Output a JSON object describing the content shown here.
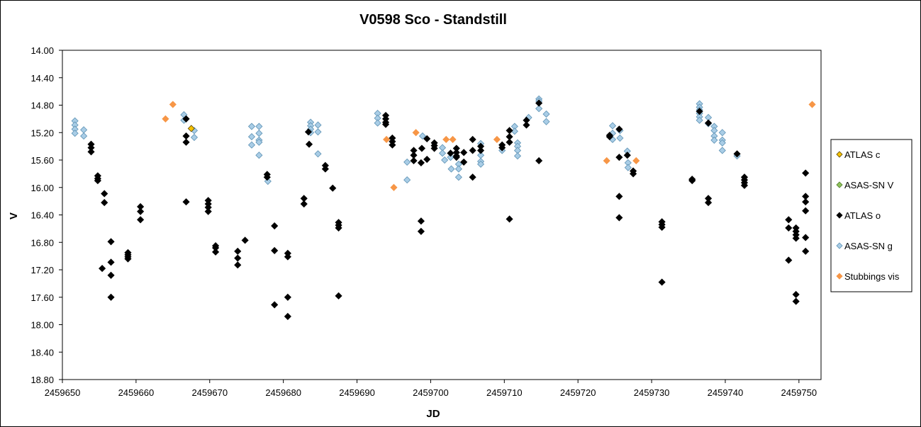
{
  "chart_data": {
    "type": "scatter",
    "title": "V0598 Sco - Standstill",
    "xlabel": "JD",
    "ylabel": "V",
    "xlim": [
      2459650,
      2459753
    ],
    "ylim": [
      14.0,
      18.8
    ],
    "y_inverted": true,
    "xticks": [
      2459650,
      2459660,
      2459670,
      2459680,
      2459690,
      2459700,
      2459710,
      2459720,
      2459730,
      2459740,
      2459750
    ],
    "yticks": [
      "14.00",
      "14.40",
      "14.80",
      "15.20",
      "15.60",
      "16.00",
      "16.40",
      "16.80",
      "17.20",
      "17.60",
      "18.00",
      "18.40",
      "18.80"
    ],
    "grid": false,
    "legend_position": "right",
    "series": [
      {
        "name": "ATLAS c",
        "fill": "#f5c100",
        "stroke": "#5a4500",
        "points": [
          [
            2459667.5,
            15.14
          ]
        ]
      },
      {
        "name": "ASAS-SN V",
        "fill": "#8fc25b",
        "stroke": "#4d7a2a",
        "points": []
      },
      {
        "name": "ATLAS o",
        "fill": "#000000",
        "stroke": "#000000",
        "points": [
          [
            2459653.9,
            15.37
          ],
          [
            2459653.9,
            15.42
          ],
          [
            2459653.9,
            15.48
          ],
          [
            2459654.8,
            15.83
          ],
          [
            2459654.8,
            15.87
          ],
          [
            2459654.8,
            15.9
          ],
          [
            2459655.7,
            16.09
          ],
          [
            2459655.7,
            16.22
          ],
          [
            2459655.4,
            17.18
          ],
          [
            2459656.6,
            16.79
          ],
          [
            2459656.6,
            17.09
          ],
          [
            2459656.6,
            17.28
          ],
          [
            2459656.6,
            17.6
          ],
          [
            2459658.9,
            16.95
          ],
          [
            2459658.9,
            16.98
          ],
          [
            2459658.9,
            17.01
          ],
          [
            2459658.9,
            17.04
          ],
          [
            2459660.6,
            16.28
          ],
          [
            2459660.6,
            16.35
          ],
          [
            2459660.6,
            16.47
          ],
          [
            2459666.8,
            15.0
          ],
          [
            2459666.8,
            15.25
          ],
          [
            2459666.8,
            15.34
          ],
          [
            2459666.8,
            16.21
          ],
          [
            2459669.8,
            16.19
          ],
          [
            2459669.8,
            16.24
          ],
          [
            2459669.8,
            16.29
          ],
          [
            2459669.8,
            16.35
          ],
          [
            2459670.8,
            16.85
          ],
          [
            2459670.8,
            16.88
          ],
          [
            2459670.8,
            16.94
          ],
          [
            2459673.8,
            16.93
          ],
          [
            2459673.8,
            17.03
          ],
          [
            2459673.8,
            17.13
          ],
          [
            2459674.8,
            16.77
          ],
          [
            2459677.8,
            15.81
          ],
          [
            2459677.8,
            15.85
          ],
          [
            2459678.8,
            16.56
          ],
          [
            2459678.8,
            16.92
          ],
          [
            2459678.8,
            17.71
          ],
          [
            2459680.6,
            16.96
          ],
          [
            2459680.6,
            17.01
          ],
          [
            2459680.6,
            17.6
          ],
          [
            2459680.6,
            17.88
          ],
          [
            2459682.8,
            16.16
          ],
          [
            2459682.8,
            16.24
          ],
          [
            2459683.4,
            15.19
          ],
          [
            2459683.5,
            15.37
          ],
          [
            2459685.7,
            15.68
          ],
          [
            2459685.7,
            15.73
          ],
          [
            2459686.7,
            16.01
          ],
          [
            2459687.5,
            16.51
          ],
          [
            2459687.5,
            16.55
          ],
          [
            2459687.5,
            16.59
          ],
          [
            2459687.5,
            17.58
          ],
          [
            2459693.9,
            14.95
          ],
          [
            2459693.9,
            15.0
          ],
          [
            2459693.9,
            15.05
          ],
          [
            2459693.9,
            15.08
          ],
          [
            2459694.8,
            15.28
          ],
          [
            2459694.8,
            15.33
          ],
          [
            2459694.8,
            15.38
          ],
          [
            2459697.7,
            15.46
          ],
          [
            2459697.7,
            15.53
          ],
          [
            2459697.7,
            15.61
          ],
          [
            2459698.8,
            15.43
          ],
          [
            2459698.7,
            15.64
          ],
          [
            2459698.7,
            16.49
          ],
          [
            2459698.7,
            16.64
          ],
          [
            2459699.5,
            15.29
          ],
          [
            2459699.5,
            15.59
          ],
          [
            2459700.5,
            15.35
          ],
          [
            2459700.5,
            15.39
          ],
          [
            2459700.5,
            15.43
          ],
          [
            2459702.7,
            15.5
          ],
          [
            2459703.5,
            15.43
          ],
          [
            2459703.5,
            15.49
          ],
          [
            2459703.5,
            15.54
          ],
          [
            2459703.5,
            15.56
          ],
          [
            2459704.5,
            15.49
          ],
          [
            2459704.5,
            15.63
          ],
          [
            2459705.7,
            15.3
          ],
          [
            2459705.7,
            15.46
          ],
          [
            2459705.7,
            15.85
          ],
          [
            2459706.8,
            15.4
          ],
          [
            2459706.8,
            15.46
          ],
          [
            2459709.7,
            15.38
          ],
          [
            2459709.7,
            15.42
          ],
          [
            2459710.7,
            15.17
          ],
          [
            2459710.7,
            15.26
          ],
          [
            2459710.7,
            15.34
          ],
          [
            2459710.7,
            16.46
          ],
          [
            2459713.0,
            15.02
          ],
          [
            2459713.0,
            15.09
          ],
          [
            2459714.7,
            14.77
          ],
          [
            2459714.7,
            15.61
          ],
          [
            2459724.3,
            15.24
          ],
          [
            2459724.3,
            15.26
          ],
          [
            2459725.6,
            15.56
          ],
          [
            2459725.6,
            16.13
          ],
          [
            2459725.6,
            16.44
          ],
          [
            2459725.6,
            15.15
          ],
          [
            2459726.7,
            15.53
          ],
          [
            2459727.5,
            15.76
          ],
          [
            2459727.5,
            15.8
          ],
          [
            2459731.4,
            16.5
          ],
          [
            2459731.4,
            16.54
          ],
          [
            2459731.4,
            16.58
          ],
          [
            2459731.4,
            17.38
          ],
          [
            2459735.5,
            15.88
          ],
          [
            2459735.5,
            15.9
          ],
          [
            2459736.5,
            14.89
          ],
          [
            2459737.7,
            15.06
          ],
          [
            2459737.7,
            16.16
          ],
          [
            2459737.7,
            16.22
          ],
          [
            2459741.6,
            15.51
          ],
          [
            2459742.6,
            15.85
          ],
          [
            2459742.6,
            15.89
          ],
          [
            2459742.6,
            15.93
          ],
          [
            2459742.6,
            15.97
          ],
          [
            2459748.6,
            16.47
          ],
          [
            2459748.6,
            16.59
          ],
          [
            2459748.6,
            17.06
          ],
          [
            2459749.6,
            16.59
          ],
          [
            2459749.6,
            16.64
          ],
          [
            2459749.6,
            16.69
          ],
          [
            2459749.6,
            16.74
          ],
          [
            2459749.6,
            17.56
          ],
          [
            2459749.6,
            17.66
          ],
          [
            2459750.9,
            15.79
          ],
          [
            2459750.9,
            16.13
          ],
          [
            2459750.9,
            16.21
          ],
          [
            2459750.9,
            16.34
          ],
          [
            2459750.9,
            16.73
          ],
          [
            2459750.9,
            16.93
          ]
        ]
      },
      {
        "name": "ASAS-SN g",
        "fill": "#a9cde6",
        "stroke": "#5f93b5",
        "points": [
          [
            2459651.7,
            15.03
          ],
          [
            2459651.7,
            15.09
          ],
          [
            2459651.7,
            15.15
          ],
          [
            2459651.7,
            15.21
          ],
          [
            2459652.9,
            15.16
          ],
          [
            2459652.9,
            15.25
          ],
          [
            2459666.5,
            14.94
          ],
          [
            2459666.5,
            15.02
          ],
          [
            2459667.9,
            15.17
          ],
          [
            2459667.9,
            15.27
          ],
          [
            2459675.7,
            15.11
          ],
          [
            2459675.7,
            15.26
          ],
          [
            2459675.7,
            15.38
          ],
          [
            2459676.7,
            15.11
          ],
          [
            2459676.7,
            15.21
          ],
          [
            2459676.7,
            15.31
          ],
          [
            2459676.7,
            15.34
          ],
          [
            2459676.7,
            15.53
          ],
          [
            2459677.9,
            15.91
          ],
          [
            2459683.7,
            15.05
          ],
          [
            2459683.7,
            15.1
          ],
          [
            2459683.7,
            15.15
          ],
          [
            2459683.7,
            15.2
          ],
          [
            2459684.7,
            15.09
          ],
          [
            2459684.7,
            15.19
          ],
          [
            2459684.7,
            15.51
          ],
          [
            2459692.8,
            14.92
          ],
          [
            2459692.8,
            14.99
          ],
          [
            2459692.8,
            15.06
          ],
          [
            2459696.8,
            15.63
          ],
          [
            2459696.8,
            15.89
          ],
          [
            2459698.9,
            15.25
          ],
          [
            2459701.6,
            15.42
          ],
          [
            2459701.6,
            15.5
          ],
          [
            2459701.9,
            15.6
          ],
          [
            2459702.7,
            15.56
          ],
          [
            2459702.8,
            15.73
          ],
          [
            2459703.8,
            15.66
          ],
          [
            2459703.8,
            15.73
          ],
          [
            2459703.8,
            15.85
          ],
          [
            2459706.8,
            15.36
          ],
          [
            2459706.8,
            15.53
          ],
          [
            2459706.8,
            15.62
          ],
          [
            2459706.8,
            15.66
          ],
          [
            2459709.7,
            15.46
          ],
          [
            2459711.4,
            15.11
          ],
          [
            2459711.4,
            15.18
          ],
          [
            2459711.8,
            15.35
          ],
          [
            2459711.8,
            15.4
          ],
          [
            2459711.8,
            15.46
          ],
          [
            2459711.8,
            15.54
          ],
          [
            2459713.3,
            14.98
          ],
          [
            2459714.7,
            14.71
          ],
          [
            2459714.7,
            14.74
          ],
          [
            2459714.7,
            14.85
          ],
          [
            2459715.7,
            14.93
          ],
          [
            2459715.7,
            15.04
          ],
          [
            2459724.7,
            15.1
          ],
          [
            2459724.7,
            15.21
          ],
          [
            2459724.7,
            15.3
          ],
          [
            2459725.7,
            15.17
          ],
          [
            2459725.7,
            15.28
          ],
          [
            2459726.7,
            15.47
          ],
          [
            2459726.8,
            15.64
          ],
          [
            2459726.8,
            15.71
          ],
          [
            2459736.5,
            14.78
          ],
          [
            2459736.5,
            14.83
          ],
          [
            2459736.5,
            14.87
          ],
          [
            2459736.5,
            14.92
          ],
          [
            2459736.5,
            14.97
          ],
          [
            2459736.5,
            15.02
          ],
          [
            2459737.7,
            14.98
          ],
          [
            2459737.7,
            15.07
          ],
          [
            2459738.5,
            15.11
          ],
          [
            2459738.5,
            15.17
          ],
          [
            2459738.5,
            15.25
          ],
          [
            2459738.5,
            15.31
          ],
          [
            2459739.6,
            15.2
          ],
          [
            2459739.6,
            15.31
          ],
          [
            2459739.6,
            15.35
          ],
          [
            2459739.6,
            15.46
          ],
          [
            2459741.6,
            15.54
          ]
        ]
      },
      {
        "name": "Stubbings vis",
        "fill": "#f79646",
        "stroke": "#f79646",
        "points": [
          [
            2459664.0,
            15.0
          ],
          [
            2459665.0,
            14.79
          ],
          [
            2459694.0,
            15.3
          ],
          [
            2459695.0,
            16.0
          ],
          [
            2459698.0,
            15.2
          ],
          [
            2459702.1,
            15.3
          ],
          [
            2459703.0,
            15.3
          ],
          [
            2459709.0,
            15.3
          ],
          [
            2459723.9,
            15.61
          ],
          [
            2459727.9,
            15.61
          ],
          [
            2459751.8,
            14.79
          ]
        ]
      }
    ]
  }
}
